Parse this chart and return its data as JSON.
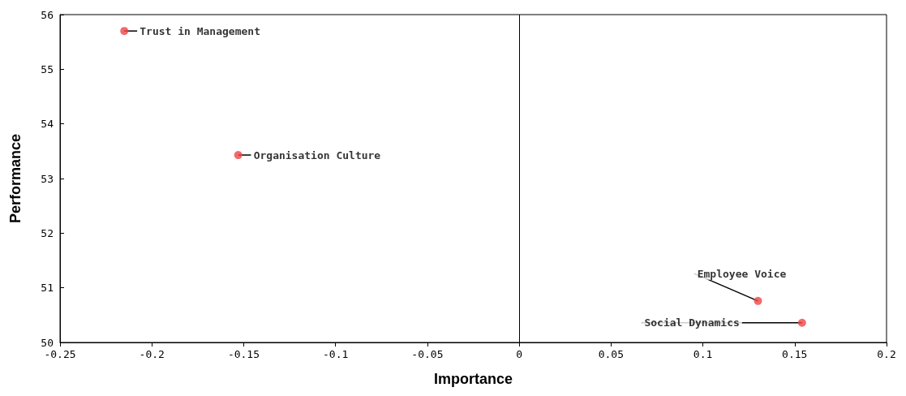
{
  "chart_data": {
    "type": "scatter",
    "xlabel": "Importance",
    "ylabel": "Performance",
    "x": [
      -0.215,
      -0.153,
      0.13,
      0.154
    ],
    "values": [
      55.7,
      53.43,
      50.76,
      50.36
    ],
    "color": "#f04545",
    "xlim": [
      -0.25,
      0.2
    ],
    "xticks": [
      -0.25,
      -0.2,
      -0.15,
      -0.1,
      -0.05,
      0,
      0.05,
      0.1,
      0.15,
      0.2
    ],
    "ylim": [
      50,
      56
    ],
    "yticks": [
      50,
      51,
      52,
      53,
      54,
      55,
      56
    ],
    "annotations": [
      {
        "text": "Trust in Management",
        "x": -0.215,
        "y": 55.7
      },
      {
        "text": "Organisation Culture",
        "x": -0.153,
        "y": 53.43
      },
      {
        "text": "Employee Voice",
        "x": 0.13,
        "y": 50.76
      },
      {
        "text": "Social Dynamics",
        "x": 0.154,
        "y": 50.36
      }
    ],
    "ref_lines": [
      {
        "axis": "x",
        "value": 0,
        "color": "#000000"
      }
    ],
    "grid": false,
    "marker": "circle"
  }
}
